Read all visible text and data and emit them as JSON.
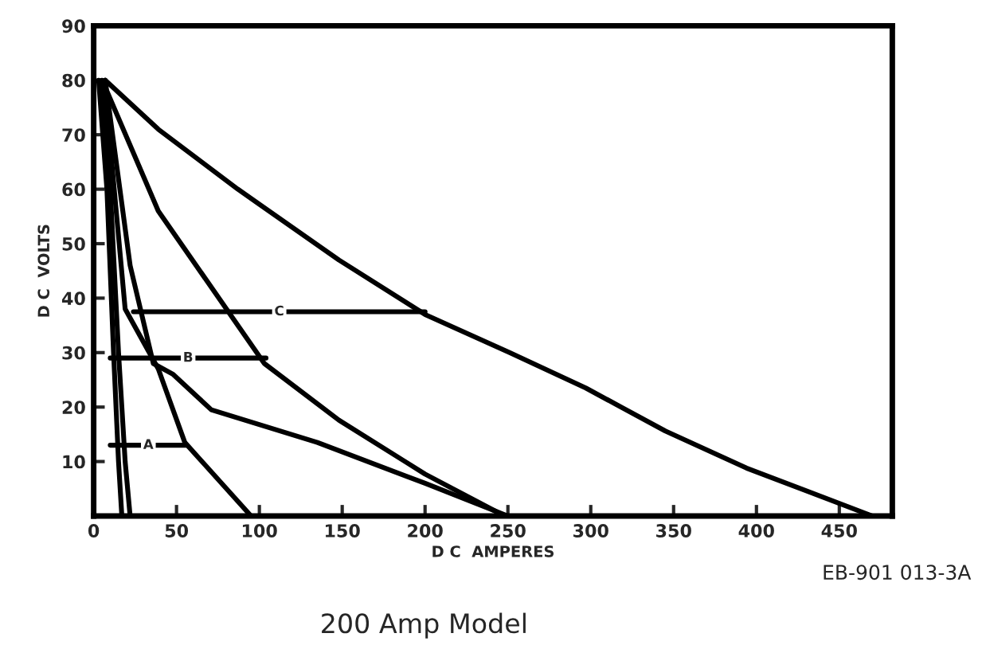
{
  "chart_data": {
    "type": "line",
    "title": "200 Amp Model",
    "xlabel": "D C  AMPERES",
    "ylabel": "D C  VOLTS",
    "annotations": [
      {
        "text": "A",
        "x": 33,
        "y": 13
      },
      {
        "text": "B",
        "x": 57,
        "y": 29
      },
      {
        "text": "C",
        "x": 112,
        "y": 37.5
      },
      "EB-901 013-3A"
    ],
    "series": [
      {
        "color": "#000000",
        "x": [
          7,
          39,
          87,
          148,
          200,
          251,
          297,
          345,
          394,
          470
        ],
        "values": [
          80,
          71,
          60,
          47,
          37,
          30,
          23.5,
          15.6,
          8.8,
          0
        ]
      },
      {
        "color": "#000000",
        "x": [
          8,
          39,
          103,
          148,
          200,
          248
        ],
        "values": [
          78,
          56,
          28,
          17.6,
          7.7,
          0
        ]
      },
      {
        "color": "#000000",
        "x": [
          7,
          22,
          36,
          48,
          71,
          135,
          200,
          250
        ],
        "values": [
          80,
          46,
          28,
          26,
          19.5,
          13.5,
          6,
          0
        ]
      },
      {
        "color": "#000000",
        "x": [
          7,
          19,
          39,
          55,
          95
        ],
        "values": [
          78,
          38,
          27,
          13.5,
          0
        ]
      },
      {
        "color": "#000000",
        "x": [
          3,
          8,
          12,
          15,
          17
        ],
        "values": [
          80,
          60,
          30,
          10,
          0
        ]
      },
      {
        "color": "#000000",
        "x": [
          5,
          10,
          15,
          19,
          22
        ],
        "values": [
          80,
          60,
          30,
          10,
          0
        ]
      },
      {
        "color": "#000000",
        "x": [
          10,
          56
        ],
        "values": [
          13,
          13
        ]
      },
      {
        "color": "#000000",
        "x": [
          10,
          104
        ],
        "values": [
          29,
          29
        ]
      },
      {
        "color": "#000000",
        "x": [
          24,
          200
        ],
        "values": [
          37.5,
          37.5
        ]
      }
    ],
    "xlim": [
      0,
      482
    ],
    "ylim": [
      0,
      90
    ],
    "xticks": [
      0,
      50,
      100,
      150,
      200,
      250,
      300,
      350,
      400,
      450
    ],
    "yticks": [
      10,
      20,
      30,
      40,
      50,
      60,
      70,
      80,
      90
    ],
    "grid": false,
    "legend": false
  }
}
